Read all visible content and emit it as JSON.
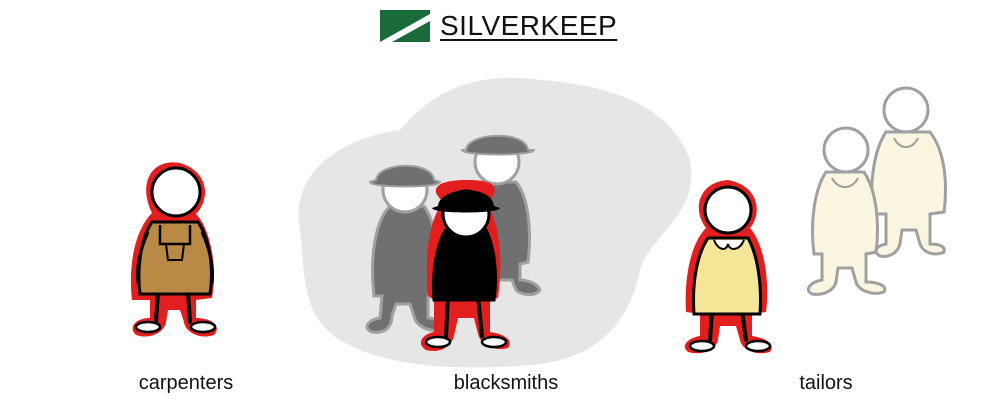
{
  "brand": {
    "name": "SILVERKEEP",
    "logo_icon": "diagonal-flag-logo",
    "colors": {
      "dark": "#1a6b3a",
      "light": "#ffffff"
    }
  },
  "groups": [
    {
      "label": "carpenters",
      "icon": "carpenter-figure-icon",
      "color": "#b98a45"
    },
    {
      "label": "blacksmiths",
      "icon": "blacksmith-figure-icon",
      "color": "#000000"
    },
    {
      "label": "tailors",
      "icon": "tailor-figure-icon",
      "color": "#f5e597"
    }
  ],
  "highlight_color": "#e31e1e"
}
